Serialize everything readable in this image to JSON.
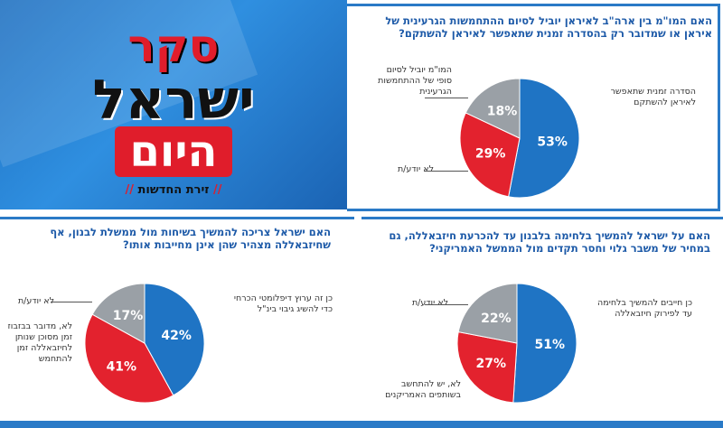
{
  "logo": {
    "line1": "סקר",
    "line2": "ישראל",
    "line3": "היום",
    "tagline": "זירת החדשות"
  },
  "chart_data": [
    {
      "type": "pie",
      "title": "האם המו\"מ בין ארה\"ב לאיראן יוביל לסיום ההתחמשות הגרעינית של איראן או שמדובר רק בהסדרה זמנית שתאפשר לאיראן להשתקם?",
      "slices": [
        {
          "label": "הסדרה זמנית שתאפשר לאיראן להשתקם",
          "value": 53,
          "display": "53%",
          "color": "#1f74c4"
        },
        {
          "label": "לא יודע/ת",
          "value": 29,
          "display": "29%",
          "color": "#e3222e"
        },
        {
          "label": "המו\"מ יוביל לסיום סופי של ההתחמשות הגרעינית",
          "value": 18,
          "display": "18%",
          "color": "#9aa0a6"
        }
      ]
    },
    {
      "type": "pie",
      "title": "האם ישראל צריכה להמשיך בשיחות מול ממשלת לבנון, אף שחיזבאללה מצהיר שהן אינן מחייבות אותו?",
      "slices": [
        {
          "label": "כן זה ערוץ דיפלומטי הכרחי כדי להשיג גיבוי בינ\"ל",
          "value": 42,
          "display": "42%",
          "color": "#1f74c4"
        },
        {
          "label": "לא, מדובר בבזבוז זמן מסוכן שנותן לחיזבאללה זמן להתחמש",
          "value": 41,
          "display": "41%",
          "color": "#e3222e"
        },
        {
          "label": "לא יודע/ת",
          "value": 17,
          "display": "17%",
          "color": "#9aa0a6"
        }
      ]
    },
    {
      "type": "pie",
      "title": "האם על ישראל להמשיך בלחימה בלבנון עד להכרעת חיזבאללה, גם במחיר של משבר גלוי וחסר תקדים מול הממשל האמריקני?",
      "slices": [
        {
          "label": "כן חייבים להמשיך בלחימה עד לפירוק חיזבאללה",
          "value": 51,
          "display": "51%",
          "color": "#1f74c4"
        },
        {
          "label": "לא, יש להתחשב בשותפים האמריקנים",
          "value": 27,
          "display": "27%",
          "color": "#e3222e"
        },
        {
          "label": "לא יודע/ת",
          "value": 22,
          "display": "22%",
          "color": "#9aa0a6"
        }
      ]
    }
  ]
}
